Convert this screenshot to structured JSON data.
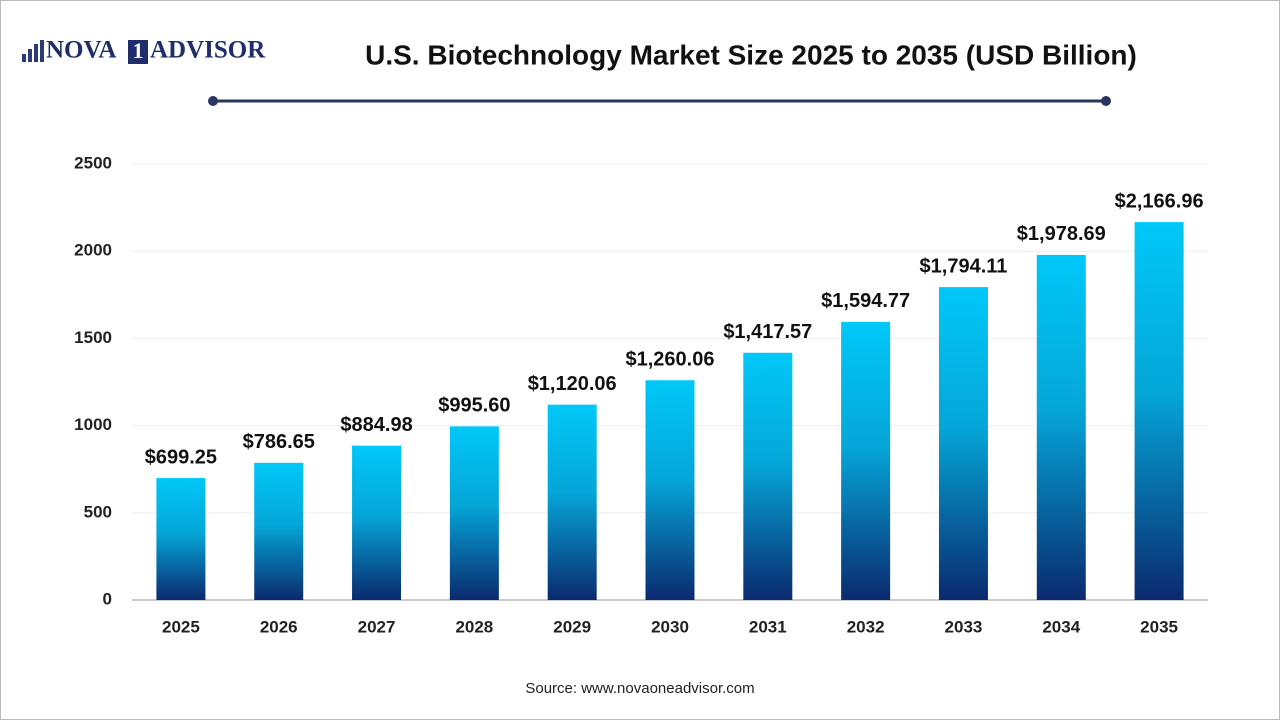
{
  "logo": {
    "left": "NOVA",
    "mark": "1",
    "right": "ADVISOR"
  },
  "chart_data": {
    "type": "bar",
    "title": "U.S. Biotechnology Market Size 2025 to 2035 (USD Billion)",
    "categories": [
      "2025",
      "2026",
      "2027",
      "2028",
      "2029",
      "2030",
      "2031",
      "2032",
      "2033",
      "2034",
      "2035"
    ],
    "values": [
      699.25,
      786.65,
      884.98,
      995.6,
      1120.06,
      1260.06,
      1417.57,
      1594.77,
      1794.11,
      1978.69,
      2166.96
    ],
    "value_labels": [
      "$699.25",
      "$786.65",
      "$884.98",
      "$995.60",
      "$1,120.06",
      "$1,260.06",
      "$1,417.57",
      "$1,594.77",
      "$1,794.11",
      "$1,978.69",
      "$2,166.96"
    ],
    "color": [
      "#00c8f8",
      "#0a2a6e"
    ],
    "ylim": [
      0,
      2500
    ],
    "yticks": [
      0,
      500,
      1000,
      1500,
      2000,
      2500
    ],
    "grid": true,
    "source": "Source: www.novaoneadvisor.com"
  }
}
